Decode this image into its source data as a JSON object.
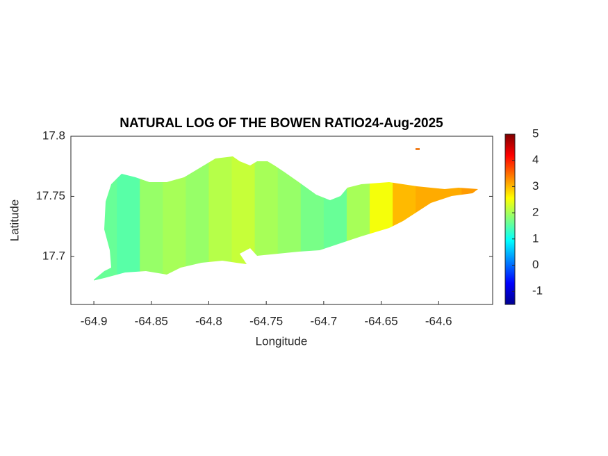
{
  "chart_data": {
    "type": "heatmap",
    "title": "NATURAL LOG OF THE BOWEN RATIO24-Aug-2025",
    "x_label": "Longitude",
    "y_label": "Latitude",
    "x": [
      -64.89,
      -64.87,
      -64.85,
      -64.83,
      -64.81,
      -64.79,
      -64.77,
      -64.75,
      -64.73,
      -64.71,
      -64.69,
      -64.67,
      -64.65,
      -64.63,
      -64.61,
      -64.59,
      -64.57
    ],
    "values": [
      1.6,
      1.5,
      1.9,
      2.0,
      1.9,
      2.1,
      2.2,
      2.0,
      1.9,
      1.7,
      1.6,
      2.0,
      2.5,
      3.0,
      3.1,
      3.1,
      3.2
    ],
    "xlim": [
      -64.92,
      -64.553
    ],
    "xticks": [
      -64.9,
      -64.85,
      -64.8,
      -64.75,
      -64.7,
      -64.65,
      -64.6
    ],
    "ylim": [
      17.66,
      17.8
    ],
    "yticks": [
      17.7,
      17.75,
      17.8
    ],
    "colormap": "jet",
    "clim": [
      -1.5,
      5
    ],
    "colorbar_ticks": [
      -1,
      0,
      1,
      2,
      3,
      4,
      5
    ]
  }
}
